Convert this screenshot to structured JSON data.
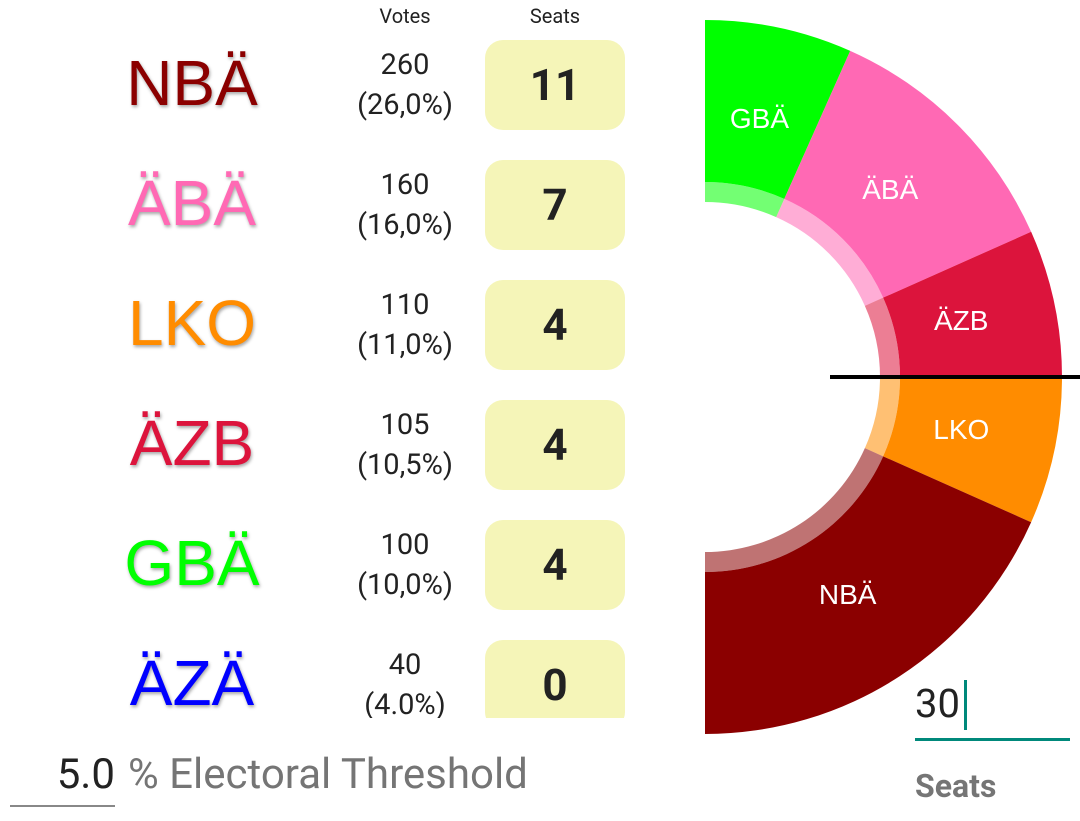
{
  "header": {
    "votes": "Votes",
    "seats": "Seats"
  },
  "parties": [
    {
      "name": "NBÄ",
      "color": "#8b0000",
      "votes": 260,
      "percent": "(26,0%)",
      "seats": 11
    },
    {
      "name": "ÄBÄ",
      "color": "#ff69b4",
      "votes": 160,
      "percent": "(16,0%)",
      "seats": 7
    },
    {
      "name": "LKO",
      "color": "#ff8c00",
      "votes": 110,
      "percent": "(11,0%)",
      "seats": 4
    },
    {
      "name": "ÄZB",
      "color": "#dc143c",
      "votes": 105,
      "percent": "(10,5%)",
      "seats": 4
    },
    {
      "name": "GBÄ",
      "color": "#00ff00",
      "votes": 100,
      "percent": "(10,0%)",
      "seats": 4
    },
    {
      "name": "ÄZÄ",
      "color": "#0000ff",
      "votes": 40,
      "percent": "(4.0%)",
      "seats": 0
    }
  ],
  "seat_chart": {
    "type": "half-donut",
    "segments": [
      {
        "name": "GBÄ",
        "color": "#00ff00",
        "seats": 4
      },
      {
        "name": "ÄBÄ",
        "color": "#ff69b4",
        "seats": 7
      },
      {
        "name": "ÄZB",
        "color": "#dc143c",
        "seats": 4
      },
      {
        "name": "LKO",
        "color": "#ff8c00",
        "seats": 4
      },
      {
        "name": "NBÄ",
        "color": "#8b0000",
        "seats": 11
      }
    ]
  },
  "total_seats": {
    "value": "30",
    "label": "Seats"
  },
  "threshold": {
    "value": "5.0",
    "label": "% Electoral Threshold"
  }
}
